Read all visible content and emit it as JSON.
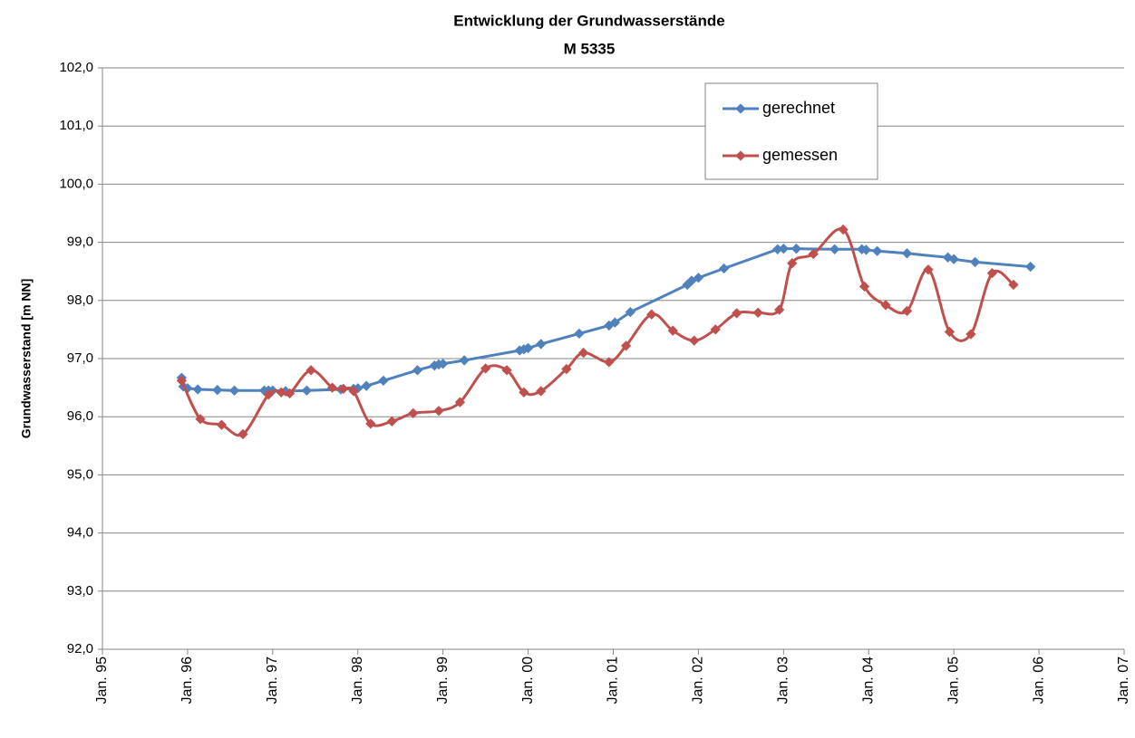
{
  "chart_data": {
    "type": "line",
    "title": "Entwicklung der Grundwasserstände",
    "subtitle": "M 5335",
    "y_label": "Grundwasserstand [m NN]",
    "xlim": [
      1995,
      2007
    ],
    "xticks": [
      {
        "value": 1995,
        "label": "Jan. 95"
      },
      {
        "value": 1996,
        "label": "Jan. 96"
      },
      {
        "value": 1997,
        "label": "Jan. 97"
      },
      {
        "value": 1998,
        "label": "Jan. 98"
      },
      {
        "value": 1999,
        "label": "Jan. 99"
      },
      {
        "value": 2000,
        "label": "Jan. 00"
      },
      {
        "value": 2001,
        "label": "Jan. 01"
      },
      {
        "value": 2002,
        "label": "Jan. 02"
      },
      {
        "value": 2003,
        "label": "Jan. 03"
      },
      {
        "value": 2004,
        "label": "Jan. 04"
      },
      {
        "value": 2005,
        "label": "Jan. 05"
      },
      {
        "value": 2006,
        "label": "Jan. 06"
      },
      {
        "value": 2007,
        "label": "Jan. 07"
      }
    ],
    "ylim": [
      92,
      102
    ],
    "yticks": [
      {
        "value": 92,
        "label": "92,0"
      },
      {
        "value": 93,
        "label": "93,0"
      },
      {
        "value": 94,
        "label": "94,0"
      },
      {
        "value": 95,
        "label": "95,0"
      },
      {
        "value": 96,
        "label": "96,0"
      },
      {
        "value": 97,
        "label": "97,0"
      },
      {
        "value": 98,
        "label": "98,0"
      },
      {
        "value": 99,
        "label": "99,0"
      },
      {
        "value": 100,
        "label": "100,0"
      },
      {
        "value": 101,
        "label": "101,0"
      },
      {
        "value": 102,
        "label": "102,0"
      }
    ],
    "grid": true,
    "series": [
      {
        "name": "gerechnet",
        "color": "#4f81bd",
        "smooth": false,
        "x": [
          1995.93,
          1995.95,
          1996.0,
          1996.12,
          1996.35,
          1996.55,
          1996.9,
          1996.95,
          1997.0,
          1997.15,
          1997.4,
          1997.8,
          1997.95,
          1998.0,
          1998.1,
          1998.3,
          1998.7,
          1998.9,
          1998.95,
          1999.0,
          1999.25,
          1999.9,
          1999.95,
          2000.0,
          2000.15,
          2000.6,
          2000.95,
          2001.02,
          2001.2,
          2001.87,
          2001.92,
          2002.0,
          2002.3,
          2002.93,
          2003.0,
          2003.15,
          2003.6,
          2003.92,
          2003.97,
          2004.1,
          2004.45,
          2004.93,
          2005.0,
          2005.25,
          2005.9
        ],
        "values": [
          96.67,
          96.52,
          96.49,
          96.47,
          96.46,
          96.45,
          96.45,
          96.45,
          96.45,
          96.44,
          96.45,
          96.47,
          96.48,
          96.49,
          96.53,
          96.62,
          96.8,
          96.88,
          96.9,
          96.91,
          96.97,
          97.14,
          97.16,
          97.18,
          97.25,
          97.43,
          97.57,
          97.62,
          97.8,
          98.27,
          98.34,
          98.39,
          98.55,
          98.88,
          98.89,
          98.89,
          98.88,
          98.88,
          98.87,
          98.85,
          98.81,
          98.74,
          98.71,
          98.66,
          98.58
        ]
      },
      {
        "name": "gemessen",
        "color": "#c0504d",
        "smooth": true,
        "x": [
          1995.93,
          1996.15,
          1996.4,
          1996.65,
          1996.95,
          1997.1,
          1997.2,
          1997.45,
          1997.7,
          1997.83,
          1997.95,
          1998.15,
          1998.4,
          1998.65,
          1998.95,
          1999.2,
          1999.5,
          1999.75,
          1999.95,
          2000.15,
          2000.45,
          2000.65,
          2000.95,
          2001.15,
          2001.45,
          2001.7,
          2001.95,
          2002.2,
          2002.45,
          2002.7,
          2002.95,
          2003.1,
          2003.35,
          2003.7,
          2003.95,
          2004.2,
          2004.45,
          2004.7,
          2004.95,
          2005.2,
          2005.45,
          2005.7
        ],
        "values": [
          96.62,
          95.96,
          95.86,
          95.7,
          96.38,
          96.42,
          96.4,
          96.8,
          96.5,
          96.48,
          96.44,
          95.88,
          95.92,
          96.06,
          96.1,
          96.25,
          96.83,
          96.8,
          96.42,
          96.44,
          96.82,
          97.1,
          96.94,
          97.22,
          97.76,
          97.48,
          97.31,
          97.5,
          97.78,
          97.79,
          97.84,
          98.64,
          98.8,
          99.22,
          98.24,
          97.92,
          97.82,
          98.53,
          97.46,
          97.42,
          98.47,
          98.27
        ]
      }
    ]
  }
}
